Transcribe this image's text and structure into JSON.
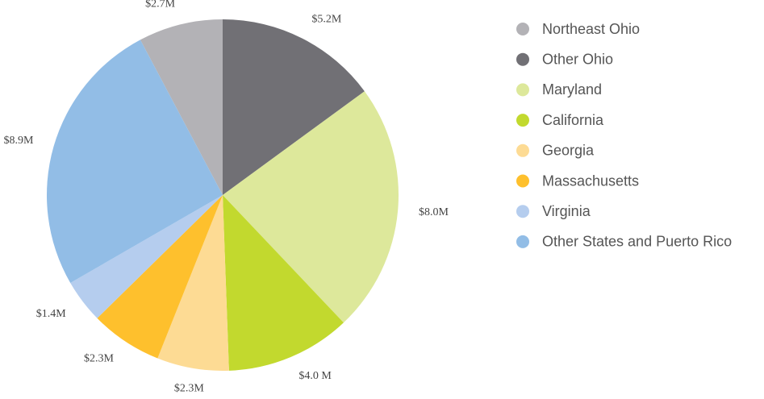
{
  "chart_data": {
    "type": "pie",
    "categories": [
      "Northeast Ohio",
      "Other Ohio",
      "Maryland",
      "California",
      "Georgia",
      "Massachusetts",
      "Virginia",
      "Other States and Puerto Rico"
    ],
    "values": [
      2.7,
      5.2,
      8.0,
      4.0,
      2.3,
      2.3,
      1.4,
      8.9
    ],
    "value_labels": [
      "$2.7M",
      "$5.2M",
      "$8.0M",
      "$4.0 M",
      "$2.3M",
      "$2.3M",
      "$1.4M",
      "$8.9M"
    ],
    "colors": [
      "#b3b2b6",
      "#717075",
      "#dde89b",
      "#c2d92e",
      "#fddb94",
      "#fec02d",
      "#b5cdee",
      "#92bde6"
    ],
    "legend": "right"
  }
}
